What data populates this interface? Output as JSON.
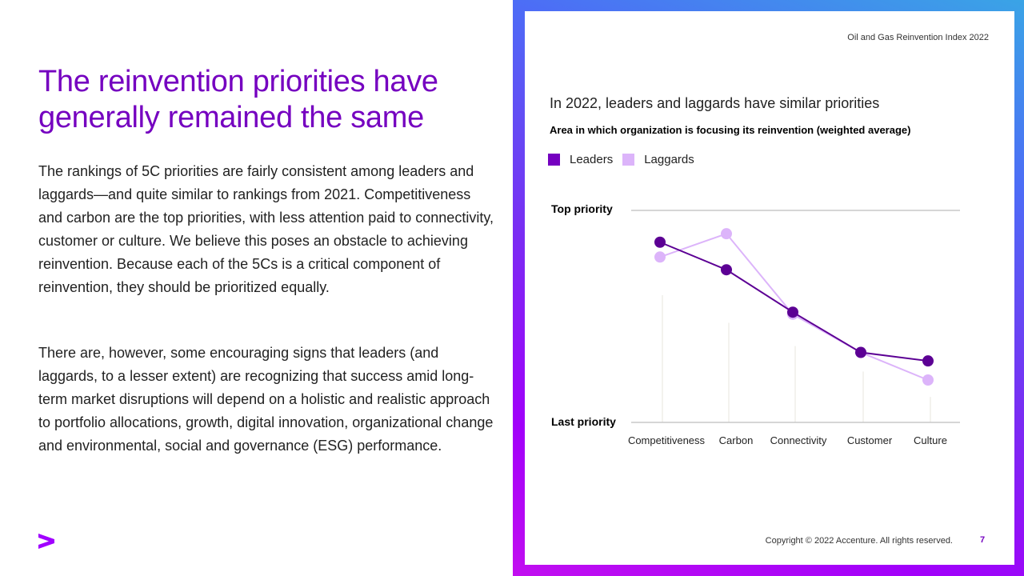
{
  "left": {
    "title": "The reinvention priorities have generally remained the same",
    "paragraphs": [
      "The rankings of 5C priorities are fairly consistent among leaders and laggards—and quite similar to rankings from 2021. Competitiveness and carbon are the top priorities, with less attention paid to connectivity, customer or culture. We believe this poses an obstacle to achieving reinvention. Because each of the 5Cs is a critical component of reinvention, they should be prioritized equally.",
      "There are, however, some encouraging signs that leaders (and laggards, to a lesser extent) are recognizing that success amid long-term market disruptions will depend on a holistic and realistic approach to portfolio allocations, growth, digital innovation, organizational change and environmental, social and governance (ESG) performance."
    ],
    "logo_icon": "accenture-chevron-icon"
  },
  "header_note": "Oil and Gas Reinvention Index 2022",
  "footer": {
    "copyright": "Copyright © 2022 Accenture. All rights reserved.",
    "page_number": "7"
  },
  "colors": {
    "accent": "#7500c0",
    "leaders": "#5c0094",
    "laggards": "#dcb4fa",
    "gridline": "#c8c8c8",
    "stem": "#efeee8"
  },
  "chart_data": {
    "type": "line",
    "title": "In 2022, leaders and laggards have similar priorities",
    "subtitle": "Area in which organization is focusing  its reinvention (weighted average)",
    "categories": [
      "Competitiveness",
      "Carbon",
      "Connectivity",
      "Customer",
      "Culture"
    ],
    "ylabel_top": "Top priority",
    "ylabel_bottom": "Last priority",
    "ylim": [
      0,
      1
    ],
    "legend": "top-left",
    "grid": false,
    "series": [
      {
        "name": "Leaders",
        "color": "#5c0094",
        "legend_color": "#7500c0",
        "values": [
          0.85,
          0.72,
          0.52,
          0.33,
          0.29
        ]
      },
      {
        "name": "Laggards",
        "color": "#dcb4fa",
        "legend_color": "#dcb4fa",
        "values": [
          0.78,
          0.89,
          0.51,
          0.33,
          0.2
        ]
      }
    ],
    "stem_tops": [
      0.6,
      0.47,
      0.36,
      0.24,
      0.12
    ]
  }
}
